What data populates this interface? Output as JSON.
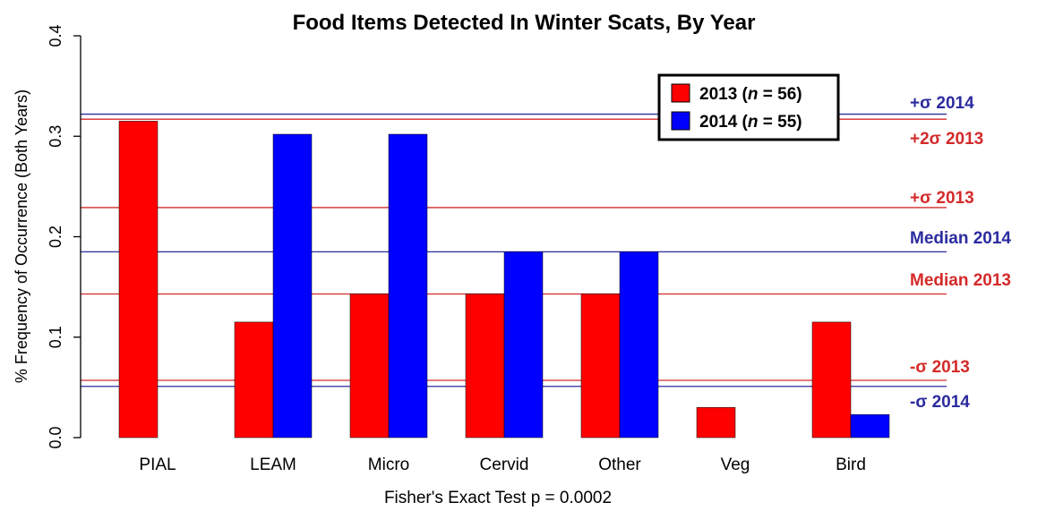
{
  "chart_data": {
    "type": "bar",
    "title": "Food Items Detected In Winter Scats, By Year",
    "xlabel": "Fisher's Exact Test p = 0.0002",
    "ylabel": "% Frequency of Occurrence (Both Years)",
    "ylim": [
      0,
      0.4
    ],
    "yticks": [
      "0.0",
      "0.1",
      "0.2",
      "0.3",
      "0.4"
    ],
    "grid": false,
    "legend_position": "top-right",
    "categories": [
      "PIAL",
      "LEAM",
      "Micro",
      "Cervid",
      "Other",
      "Veg",
      "Bird"
    ],
    "series": [
      {
        "name": "2013",
        "legend_year": "2013 (",
        "legend_n": "n",
        "legend_count": " = 56)",
        "color": "#ff0000",
        "values": [
          0.315,
          0.115,
          0.143,
          0.143,
          0.143,
          0.03,
          0.115
        ]
      },
      {
        "name": "2014",
        "legend_year": "2014 (",
        "legend_n": "n",
        "legend_count": " = 55)",
        "color": "#0000ff",
        "values": [
          0.0,
          0.302,
          0.302,
          0.185,
          0.185,
          0.0,
          0.023
        ]
      }
    ],
    "reference_lines": [
      {
        "label": "+σ 2014",
        "value": 0.322,
        "color": "#2b2b9f"
      },
      {
        "label": "+2σ 2013",
        "value": 0.317,
        "color": "#d42a2a"
      },
      {
        "label": "+σ 2013",
        "value": 0.229,
        "color": "#d42a2a"
      },
      {
        "label": "Median 2014",
        "value": 0.185,
        "color": "#2b2b9f"
      },
      {
        "label": "Median 2013",
        "value": 0.143,
        "color": "#d42a2a"
      },
      {
        "label": "-σ 2013",
        "value": 0.057,
        "color": "#d42a2a"
      },
      {
        "label": "-σ 2014",
        "value": 0.051,
        "color": "#2b2b9f"
      }
    ]
  }
}
